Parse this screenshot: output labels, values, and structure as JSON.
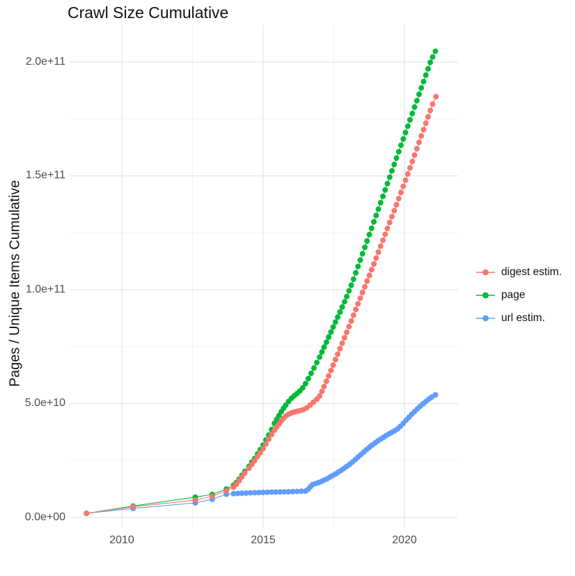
{
  "title": "Crawl Size Cumulative",
  "chart_data": {
    "type": "scatter",
    "title": "Crawl Size Cumulative",
    "xlabel": "",
    "ylabel": "Pages / Unique Items Cumulative",
    "xlim": [
      2008.15,
      2021.9
    ],
    "ylim": [
      -4300000000.0,
      216200000000.0
    ],
    "grid": true,
    "legend_position": "right",
    "x_ticks": [
      {
        "label": "2010",
        "value": 2010
      },
      {
        "label": "2015",
        "value": 2015
      },
      {
        "label": "2020",
        "value": 2020
      }
    ],
    "x_minor": [
      2012.5,
      2017.5
    ],
    "y_ticks": [
      {
        "label": "0.0e+00",
        "value": 0
      },
      {
        "label": "5.0e+10",
        "value": 50000000000.0
      },
      {
        "label": "1.0e+11",
        "value": 100000000000.0
      },
      {
        "label": "1.5e+11",
        "value": 150000000000.0
      },
      {
        "label": "2.0e+11",
        "value": 200000000000.0
      }
    ],
    "y_minor": [
      25000000000.0,
      75000000000.0,
      125000000000.0,
      175000000000.0
    ],
    "values_unit": "billions (1e9) of pages / unique items",
    "series": [
      {
        "name": "digest estim.",
        "color": "#F8766D",
        "points": [
          [
            2008.75,
            1.8
          ],
          [
            2010.4,
            4.7
          ],
          [
            2012.6,
            7.6
          ],
          [
            2013.2,
            9.3
          ],
          [
            2013.7,
            11.7
          ],
          [
            2013.95,
            13.3
          ],
          [
            2014.05,
            14.6
          ],
          [
            2014.15,
            16.1
          ],
          [
            2014.25,
            17.8
          ],
          [
            2014.35,
            19.5
          ],
          [
            2014.5,
            21.6
          ],
          [
            2014.6,
            23.3
          ],
          [
            2014.7,
            24.9
          ],
          [
            2014.8,
            26.7
          ],
          [
            2014.9,
            28.4
          ],
          [
            2015.0,
            30.2
          ],
          [
            2015.1,
            32.3
          ],
          [
            2015.2,
            34.4
          ],
          [
            2015.3,
            36.4
          ],
          [
            2015.4,
            38.3
          ],
          [
            2015.48,
            39.7
          ],
          [
            2015.56,
            41.0
          ],
          [
            2015.64,
            42.3
          ],
          [
            2015.72,
            43.5
          ],
          [
            2015.8,
            44.5
          ],
          [
            2015.9,
            45.3
          ],
          [
            2016.0,
            45.9
          ],
          [
            2016.1,
            46.3
          ],
          [
            2016.2,
            46.6
          ],
          [
            2016.3,
            46.9
          ],
          [
            2016.42,
            47.3
          ],
          [
            2016.54,
            48.1
          ],
          [
            2016.66,
            49.3
          ],
          [
            2016.78,
            50.6
          ],
          [
            2016.9,
            51.9
          ],
          [
            2017.0,
            53.3
          ],
          [
            2017.08,
            55.3
          ],
          [
            2017.16,
            57.5
          ],
          [
            2017.24,
            59.8
          ],
          [
            2017.32,
            62.1
          ],
          [
            2017.4,
            64.5
          ],
          [
            2017.48,
            66.9
          ],
          [
            2017.56,
            69.3
          ],
          [
            2017.64,
            71.7
          ],
          [
            2017.72,
            74.1
          ],
          [
            2017.8,
            76.5
          ],
          [
            2017.88,
            78.9
          ],
          [
            2017.96,
            81.3
          ],
          [
            2018.04,
            83.8
          ],
          [
            2018.12,
            86.3
          ],
          [
            2018.2,
            88.8
          ],
          [
            2018.28,
            91.3
          ],
          [
            2018.36,
            93.8
          ],
          [
            2018.44,
            96.3
          ],
          [
            2018.52,
            98.8
          ],
          [
            2018.6,
            101.3
          ],
          [
            2018.68,
            103.8
          ],
          [
            2018.76,
            106.3
          ],
          [
            2018.84,
            108.8
          ],
          [
            2018.92,
            111.3
          ],
          [
            2019.0,
            113.9
          ],
          [
            2019.08,
            116.5
          ],
          [
            2019.16,
            119.1
          ],
          [
            2019.24,
            121.7
          ],
          [
            2019.32,
            124.3
          ],
          [
            2019.4,
            126.9
          ],
          [
            2019.48,
            129.5
          ],
          [
            2019.56,
            132.1
          ],
          [
            2019.64,
            134.7
          ],
          [
            2019.72,
            137.3
          ],
          [
            2019.8,
            140.0
          ],
          [
            2019.88,
            142.7
          ],
          [
            2019.96,
            145.4
          ],
          [
            2020.04,
            148.1
          ],
          [
            2020.12,
            150.8
          ],
          [
            2020.2,
            153.5
          ],
          [
            2020.28,
            156.3
          ],
          [
            2020.36,
            159.1
          ],
          [
            2020.44,
            161.9
          ],
          [
            2020.52,
            164.7
          ],
          [
            2020.6,
            167.5
          ],
          [
            2020.68,
            170.3
          ],
          [
            2020.76,
            173.1
          ],
          [
            2020.84,
            175.9
          ],
          [
            2020.92,
            178.7
          ],
          [
            2021.0,
            181.5
          ],
          [
            2021.12,
            184.8
          ]
        ]
      },
      {
        "name": "page",
        "color": "#00BA38",
        "points": [
          [
            2008.75,
            1.8
          ],
          [
            2010.4,
            5.0
          ],
          [
            2012.6,
            8.9
          ],
          [
            2013.2,
            10.1
          ],
          [
            2013.7,
            12.5
          ],
          [
            2013.95,
            14.1
          ],
          [
            2014.05,
            15.3
          ],
          [
            2014.15,
            16.8
          ],
          [
            2014.25,
            18.5
          ],
          [
            2014.35,
            20.2
          ],
          [
            2014.5,
            22.5
          ],
          [
            2014.6,
            24.3
          ],
          [
            2014.7,
            25.9
          ],
          [
            2014.8,
            27.9
          ],
          [
            2014.9,
            29.8
          ],
          [
            2015.0,
            31.8
          ],
          [
            2015.1,
            34.0
          ],
          [
            2015.2,
            36.2
          ],
          [
            2015.3,
            38.6
          ],
          [
            2015.4,
            41.3
          ],
          [
            2015.48,
            43.1
          ],
          [
            2015.56,
            44.7
          ],
          [
            2015.64,
            46.4
          ],
          [
            2015.72,
            47.9
          ],
          [
            2015.8,
            49.3
          ],
          [
            2015.9,
            50.9
          ],
          [
            2016.0,
            52.3
          ],
          [
            2016.1,
            53.4
          ],
          [
            2016.2,
            54.4
          ],
          [
            2016.3,
            55.5
          ],
          [
            2016.4,
            56.9
          ],
          [
            2016.5,
            58.8
          ],
          [
            2016.6,
            61.0
          ],
          [
            2016.7,
            63.3
          ],
          [
            2016.8,
            65.6
          ],
          [
            2016.9,
            68.0
          ],
          [
            2017.0,
            70.4
          ],
          [
            2017.08,
            72.6
          ],
          [
            2017.16,
            74.8
          ],
          [
            2017.24,
            77.0
          ],
          [
            2017.32,
            79.2
          ],
          [
            2017.4,
            81.4
          ],
          [
            2017.48,
            83.6
          ],
          [
            2017.56,
            85.8
          ],
          [
            2017.64,
            88.0
          ],
          [
            2017.72,
            90.2
          ],
          [
            2017.8,
            92.4
          ],
          [
            2017.88,
            94.7
          ],
          [
            2017.96,
            97.0
          ],
          [
            2018.04,
            99.5
          ],
          [
            2018.12,
            102.0
          ],
          [
            2018.2,
            104.6
          ],
          [
            2018.28,
            107.4
          ],
          [
            2018.36,
            110.2
          ],
          [
            2018.44,
            113.0
          ],
          [
            2018.52,
            115.8
          ],
          [
            2018.6,
            118.6
          ],
          [
            2018.68,
            121.4
          ],
          [
            2018.76,
            124.2
          ],
          [
            2018.84,
            127.0
          ],
          [
            2018.92,
            129.8
          ],
          [
            2019.0,
            132.6
          ],
          [
            2019.08,
            135.4
          ],
          [
            2019.16,
            138.2
          ],
          [
            2019.24,
            141.0
          ],
          [
            2019.32,
            143.8
          ],
          [
            2019.4,
            146.6
          ],
          [
            2019.48,
            149.4
          ],
          [
            2019.56,
            152.2
          ],
          [
            2019.64,
            155.0
          ],
          [
            2019.72,
            157.8
          ],
          [
            2019.8,
            160.6
          ],
          [
            2019.88,
            163.4
          ],
          [
            2019.96,
            166.2
          ],
          [
            2020.04,
            169.0
          ],
          [
            2020.12,
            171.8
          ],
          [
            2020.2,
            174.6
          ],
          [
            2020.28,
            177.4
          ],
          [
            2020.36,
            180.2
          ],
          [
            2020.44,
            183.0
          ],
          [
            2020.52,
            185.8
          ],
          [
            2020.6,
            188.6
          ],
          [
            2020.68,
            191.4
          ],
          [
            2020.76,
            194.2
          ],
          [
            2020.84,
            197.0
          ],
          [
            2020.92,
            199.8
          ],
          [
            2021.0,
            202.2
          ],
          [
            2021.1,
            204.7
          ]
        ]
      },
      {
        "name": "url estim.",
        "color": "#619CFF",
        "points": [
          [
            2008.75,
            1.8
          ],
          [
            2010.4,
            4.0
          ],
          [
            2012.6,
            6.4
          ],
          [
            2013.2,
            8.0
          ],
          [
            2013.7,
            10.2
          ],
          [
            2013.95,
            10.45
          ],
          [
            2014.1,
            10.55
          ],
          [
            2014.25,
            10.65
          ],
          [
            2014.4,
            10.72
          ],
          [
            2014.55,
            10.8
          ],
          [
            2014.7,
            10.87
          ],
          [
            2014.85,
            10.93
          ],
          [
            2015.0,
            11.0
          ],
          [
            2015.15,
            11.05
          ],
          [
            2015.3,
            11.1
          ],
          [
            2015.45,
            11.15
          ],
          [
            2015.6,
            11.2
          ],
          [
            2015.75,
            11.25
          ],
          [
            2015.9,
            11.3
          ],
          [
            2016.05,
            11.35
          ],
          [
            2016.2,
            11.42
          ],
          [
            2016.35,
            11.5
          ],
          [
            2016.5,
            11.6
          ],
          [
            2016.6,
            12.4
          ],
          [
            2016.68,
            13.6
          ],
          [
            2016.76,
            14.5
          ],
          [
            2016.86,
            14.9
          ],
          [
            2016.96,
            15.3
          ],
          [
            2017.06,
            15.8
          ],
          [
            2017.16,
            16.4
          ],
          [
            2017.26,
            17.0
          ],
          [
            2017.36,
            17.7
          ],
          [
            2017.46,
            18.4
          ],
          [
            2017.56,
            19.1
          ],
          [
            2017.66,
            19.9
          ],
          [
            2017.76,
            20.7
          ],
          [
            2017.86,
            21.5
          ],
          [
            2017.96,
            22.4
          ],
          [
            2018.06,
            23.3
          ],
          [
            2018.16,
            24.3
          ],
          [
            2018.26,
            25.4
          ],
          [
            2018.36,
            26.5
          ],
          [
            2018.46,
            27.6
          ],
          [
            2018.56,
            28.7
          ],
          [
            2018.66,
            29.8
          ],
          [
            2018.76,
            30.8
          ],
          [
            2018.86,
            31.8
          ],
          [
            2018.96,
            32.7
          ],
          [
            2019.06,
            33.6
          ],
          [
            2019.16,
            34.4
          ],
          [
            2019.26,
            35.2
          ],
          [
            2019.36,
            36.0
          ],
          [
            2019.46,
            36.7
          ],
          [
            2019.56,
            37.4
          ],
          [
            2019.66,
            38.1
          ],
          [
            2019.76,
            38.9
          ],
          [
            2019.86,
            40.0
          ],
          [
            2019.96,
            41.3
          ],
          [
            2020.06,
            42.7
          ],
          [
            2020.16,
            44.0
          ],
          [
            2020.26,
            45.3
          ],
          [
            2020.36,
            46.5
          ],
          [
            2020.46,
            47.7
          ],
          [
            2020.56,
            48.8
          ],
          [
            2020.66,
            49.9
          ],
          [
            2020.76,
            50.9
          ],
          [
            2020.86,
            51.9
          ],
          [
            2020.96,
            52.8
          ],
          [
            2021.1,
            53.8
          ]
        ]
      }
    ]
  },
  "legend": {
    "items": [
      {
        "label": "digest estim."
      },
      {
        "label": "page"
      },
      {
        "label": "url estim."
      }
    ]
  }
}
